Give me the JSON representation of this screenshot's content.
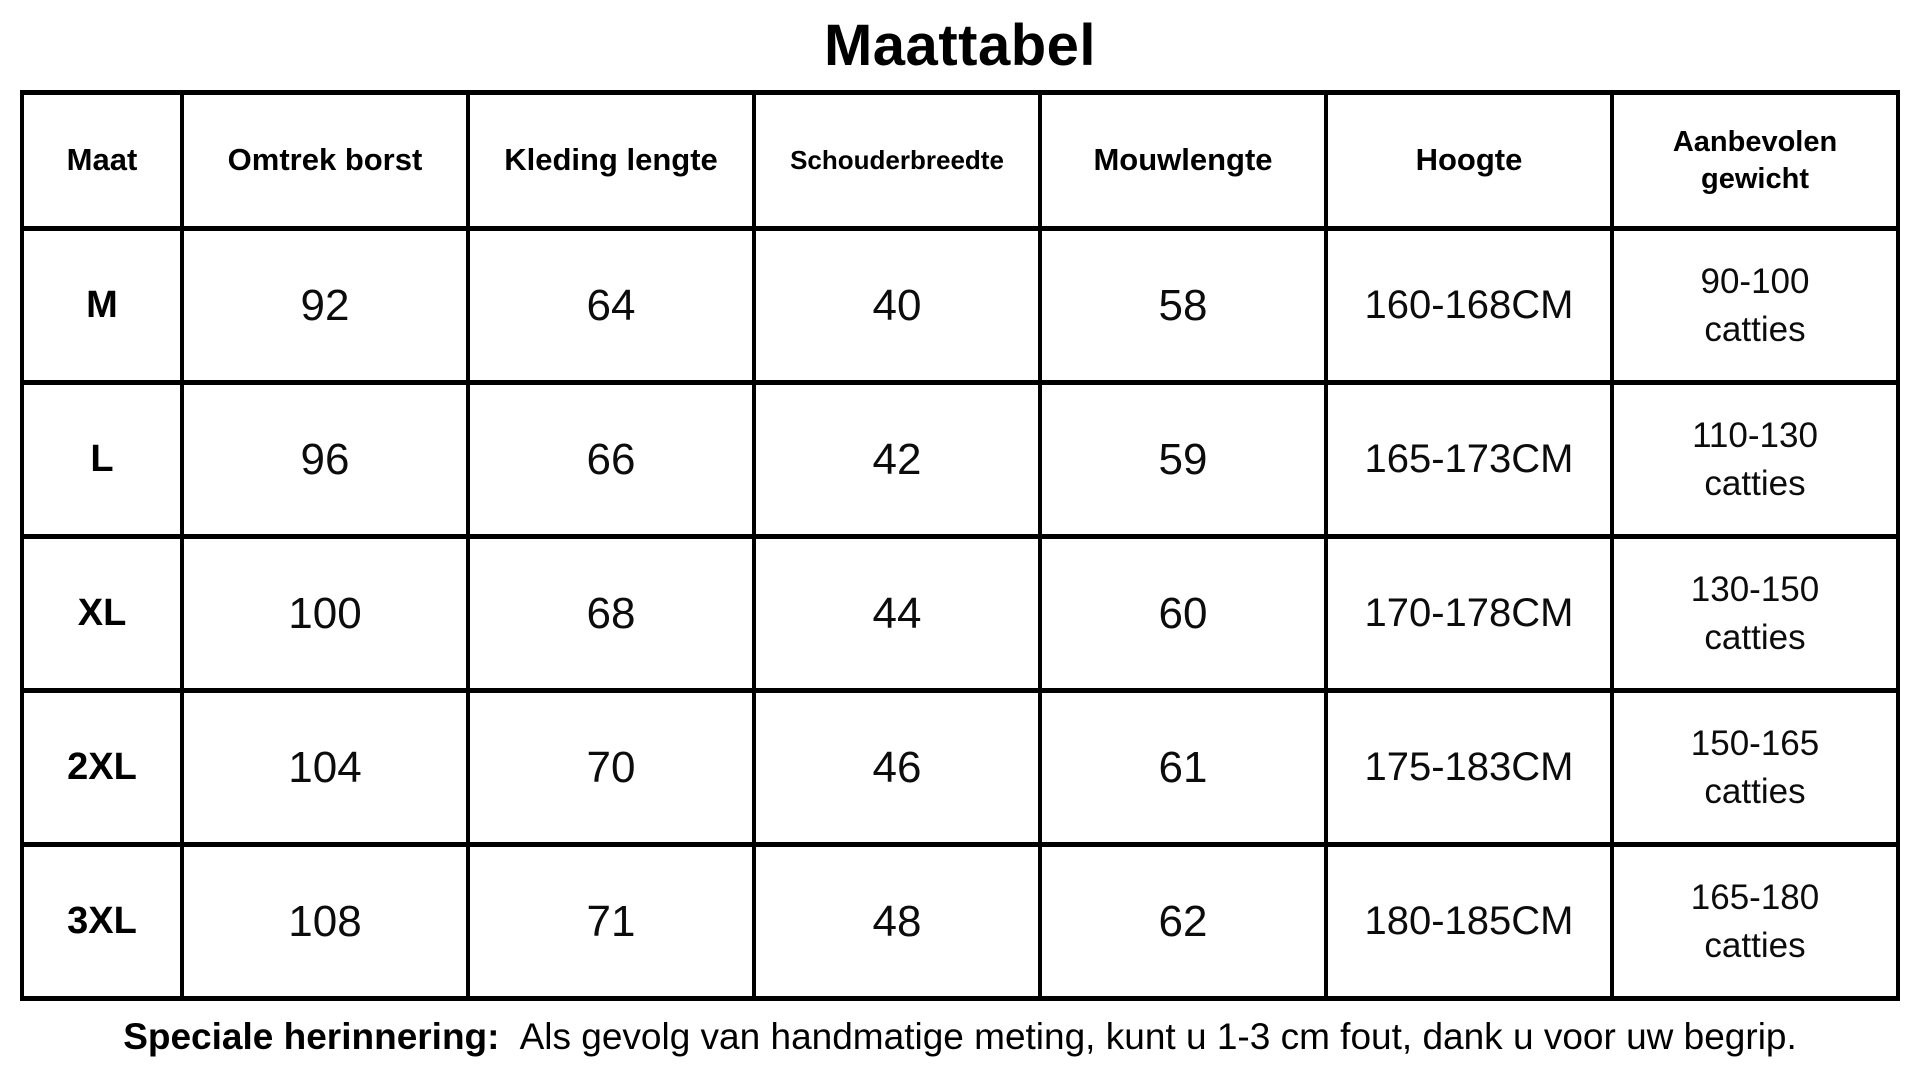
{
  "title": "Maattabel",
  "chart_data": {
    "type": "table",
    "title": "Maattabel",
    "columns": [
      "Maat",
      "Omtrek borst",
      "Kleding lengte",
      "Schouderbreedte",
      "Mouwlengte",
      "Hoogte",
      "Aanbevolen gewicht"
    ],
    "rows": [
      [
        "M",
        "92",
        "64",
        "40",
        "58",
        "160-168CM",
        "90-100 catties"
      ],
      [
        "L",
        "96",
        "66",
        "42",
        "59",
        "165-173CM",
        "110-130 catties"
      ],
      [
        "XL",
        "100",
        "68",
        "44",
        "60",
        "170-178CM",
        "130-150 catties"
      ],
      [
        "2XL",
        "104",
        "70",
        "46",
        "61",
        "175-183CM",
        "150-165 catties"
      ],
      [
        "3XL",
        "108",
        "71",
        "48",
        "62",
        "180-185CM",
        "165-180 catties"
      ]
    ],
    "note": "Speciale herinnering: Als gevolg van handmatige meting, kunt u 1-3 cm fout, dank u voor uw begrip."
  },
  "note": {
    "label": "Speciale herinnering:",
    "text": "Als gevolg van handmatige meting, kunt u 1-3 cm fout, dank u voor uw begrip."
  },
  "colors": {
    "text": "#000000",
    "border": "#000000",
    "background": "#ffffff"
  }
}
